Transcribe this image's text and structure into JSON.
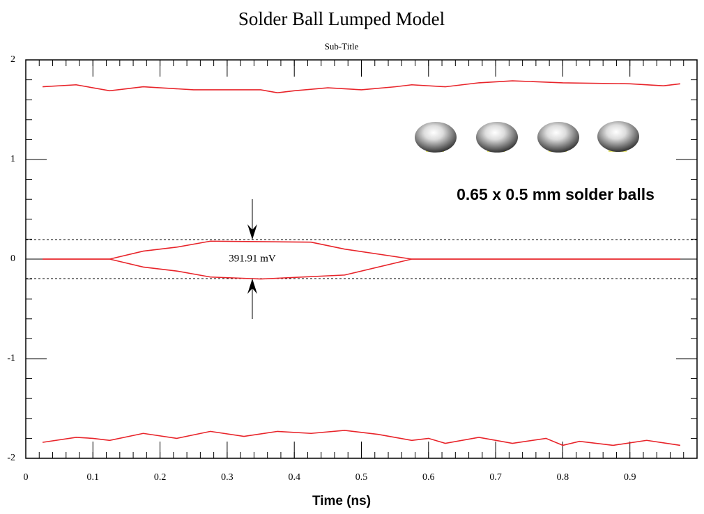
{
  "chart_data": {
    "type": "line",
    "title": "Solder Ball Lumped Model",
    "subtitle": "Sub-Title",
    "x_label": "Time (ns)",
    "annotations": [
      "391.91 mV",
      "0.65 x 0.5 mm solder balls"
    ],
    "xlim": [
      0,
      1
    ],
    "ylim": [
      -2,
      2
    ],
    "xticks": [
      0,
      0.1,
      0.2,
      0.3,
      0.4,
      0.5,
      0.6,
      0.7,
      0.8,
      0.9
    ],
    "yticks": [
      -2,
      -1,
      0,
      1,
      2
    ],
    "minor_subdivisions": 5,
    "hlines": [
      0.19596,
      -0.19596
    ],
    "series": [
      {
        "color": "#e8242a",
        "x": [
          0.025,
          0.075,
          0.1,
          0.125,
          0.175,
          0.2,
          0.25,
          0.3,
          0.35,
          0.375,
          0.4,
          0.45,
          0.5,
          0.55,
          0.575,
          0.625,
          0.675,
          0.725,
          0.8,
          0.9,
          0.95,
          0.975
        ],
        "values": [
          1.73,
          1.75,
          1.72,
          1.69,
          1.73,
          1.72,
          1.7,
          1.7,
          1.7,
          1.67,
          1.69,
          1.72,
          1.7,
          1.73,
          1.75,
          1.73,
          1.77,
          1.79,
          1.77,
          1.76,
          1.74,
          1.76
        ]
      },
      {
        "color": "#e8242a",
        "x": [
          0.025,
          0.075,
          0.1,
          0.125,
          0.175,
          0.225,
          0.275,
          0.325,
          0.375,
          0.425,
          0.475,
          0.525,
          0.575,
          0.6,
          0.625,
          0.675,
          0.725,
          0.775,
          0.8,
          0.825,
          0.875,
          0.925,
          0.975
        ],
        "values": [
          -1.84,
          -1.79,
          -1.8,
          -1.82,
          -1.75,
          -1.8,
          -1.73,
          -1.78,
          -1.73,
          -1.75,
          -1.72,
          -1.76,
          -1.82,
          -1.8,
          -1.85,
          -1.79,
          -1.85,
          -1.8,
          -1.87,
          -1.83,
          -1.87,
          -1.82,
          -1.87
        ]
      },
      {
        "color": "#e8242a",
        "x": [
          0.025,
          0.1,
          0.125,
          0.175,
          0.225,
          0.275,
          0.425,
          0.475,
          0.575,
          0.975
        ],
        "values": [
          0,
          0,
          0,
          0.08,
          0.12,
          0.18,
          0.17,
          0.1,
          0,
          0
        ]
      },
      {
        "color": "#e8242a",
        "x": [
          0.025,
          0.125,
          0.175,
          0.225,
          0.275,
          0.35,
          0.475,
          0.575,
          0.975
        ],
        "values": [
          0,
          0,
          -0.08,
          -0.12,
          -0.18,
          -0.2,
          -0.16,
          0,
          0
        ]
      }
    ]
  }
}
